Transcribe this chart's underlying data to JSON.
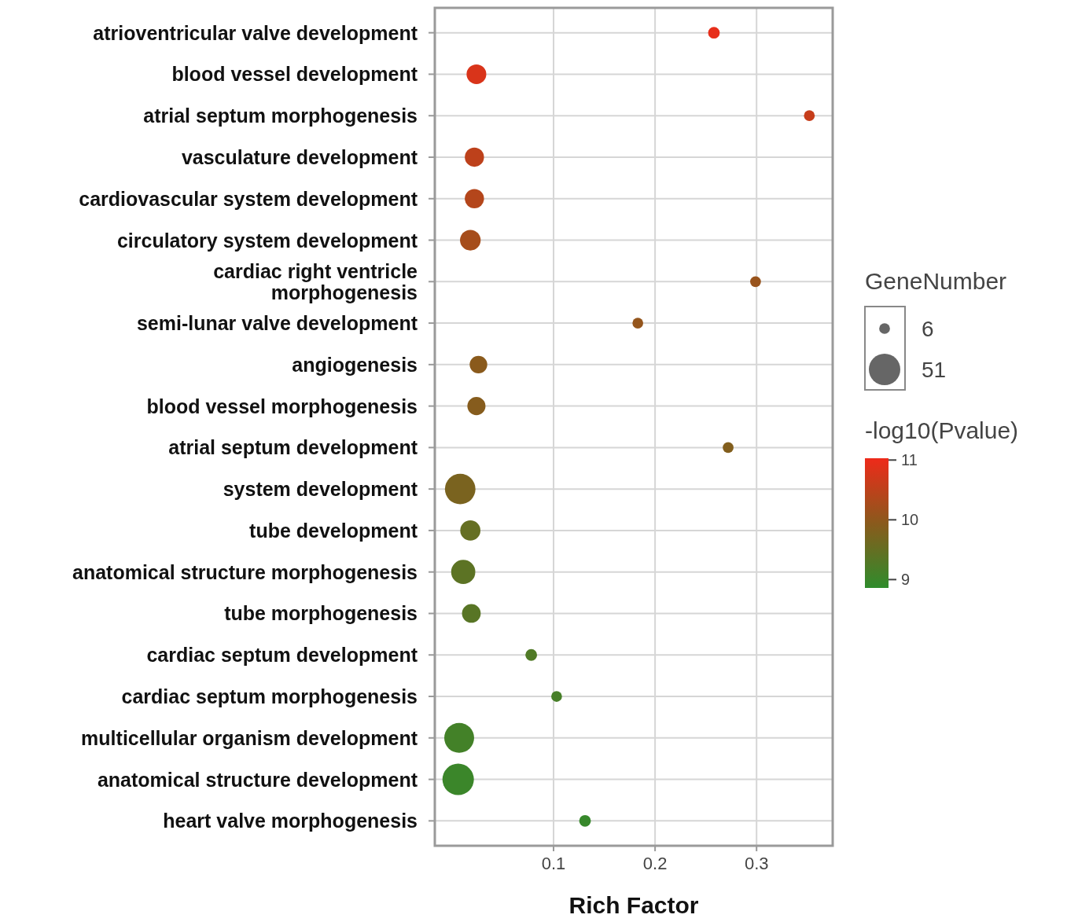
{
  "chart_data": {
    "type": "bubble",
    "orientation": "horizontal",
    "categories": [
      "atrioventricular valve development",
      "blood vessel development",
      "atrial septum morphogenesis",
      "vasculature development",
      "cardiovascular system development",
      "circulatory system development",
      "cardiac right ventricle morphogenesis",
      "semi-lunar valve development",
      "angiogenesis",
      "blood vessel morphogenesis",
      "atrial septum development",
      "system development",
      "tube development",
      "anatomical structure morphogenesis",
      "tube morphogenesis",
      "cardiac septum development",
      "cardiac septum morphogenesis",
      "multicellular organism development",
      "anatomical structure development",
      "heart valve morphogenesis"
    ],
    "values": [
      0.258,
      0.024,
      0.352,
      0.022,
      0.022,
      0.018,
      0.299,
      0.183,
      0.026,
      0.024,
      0.272,
      0.008,
      0.018,
      0.011,
      0.019,
      0.078,
      0.103,
      0.007,
      0.006,
      0.131
    ],
    "sizes": [
      7,
      20,
      6,
      19,
      19,
      22,
      6,
      6,
      16,
      17,
      6,
      48,
      21,
      30,
      18,
      7,
      6,
      46,
      51,
      7
    ],
    "cvalues": [
      10.95,
      10.8,
      10.6,
      10.5,
      10.4,
      10.25,
      10.1,
      10.05,
      9.95,
      9.9,
      9.85,
      9.75,
      9.5,
      9.4,
      9.35,
      9.25,
      9.15,
      9.1,
      9.0,
      8.95
    ],
    "size_legend": [
      6,
      51
    ],
    "legend_title": "GeneNumber",
    "clabel": "-log10(Pvalue)",
    "clim": [
      8.86,
      11.03
    ],
    "cticks": [
      9,
      10,
      11
    ],
    "xlim": [
      -0.017,
      0.375
    ],
    "xticks": [
      0.1,
      0.2,
      0.3
    ],
    "xlabel": "Rich Factor",
    "grid": true
  }
}
